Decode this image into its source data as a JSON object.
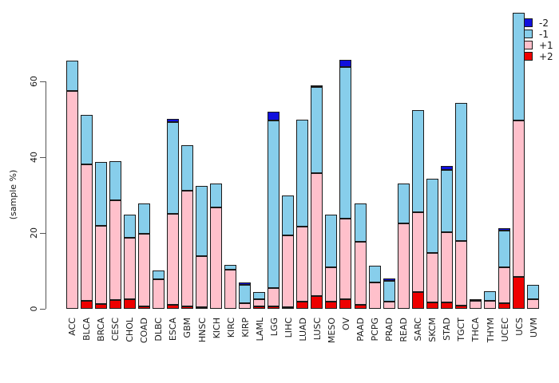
{
  "figure": {
    "ylabel": "(sample %)",
    "legend": {
      "items": [
        {
          "label": "-2",
          "color": "#1010dd"
        },
        {
          "label": "-1",
          "color": "#87ceeb"
        },
        {
          "label": "+1",
          "color": "#ffc0cb"
        },
        {
          "label": "+2",
          "color": "#ee0000"
        }
      ]
    }
  },
  "chart_data": {
    "type": "bar",
    "stacked": true,
    "title": "",
    "xlabel": "",
    "ylabel": "(sample %)",
    "ylim": [
      0,
      80
    ],
    "yticks": [
      0,
      20,
      40,
      60
    ],
    "grid": false,
    "legend_position": "top-right",
    "bar_order_bottom_to_top": [
      "+2",
      "+1",
      "-1",
      "-2"
    ],
    "categories": [
      "ACC",
      "BLCA",
      "BRCA",
      "CESC",
      "CHOL",
      "COAD",
      "DLBC",
      "ESCA",
      "GBM",
      "HNSC",
      "KICH",
      "KIRC",
      "KIRP",
      "LAML",
      "LGG",
      "LIHC",
      "LUAD",
      "LUSC",
      "MESO",
      "OV",
      "PAAD",
      "PCPG",
      "PRAD",
      "READ",
      "SARC",
      "SKCM",
      "STAD",
      "TGCT",
      "THCA",
      "THYM",
      "UCEC",
      "UCS",
      "UVM"
    ],
    "series": [
      {
        "name": "+2",
        "color": "#ee0000",
        "values": [
          0,
          2.1,
          1.3,
          2.3,
          2.6,
          0.6,
          0,
          1.1,
          0.6,
          0.5,
          0,
          0,
          0,
          0.7,
          0.7,
          0.3,
          1.9,
          3.4,
          2.0,
          2.5,
          1.1,
          0,
          0,
          0,
          4.4,
          1.6,
          1.6,
          0.9,
          0,
          0,
          1.4,
          8.4,
          0
        ]
      },
      {
        "name": "+1",
        "color": "#ffc0cb",
        "values": [
          57.4,
          36.0,
          20.6,
          26.4,
          16.2,
          19.1,
          7.8,
          24.0,
          30.6,
          13.4,
          26.8,
          10.4,
          1.4,
          1.9,
          4.7,
          19.0,
          19.7,
          32.5,
          9.0,
          21.4,
          16.6,
          7.0,
          1.8,
          22.6,
          21.0,
          13.1,
          18.6,
          17.0,
          2.1,
          2.1,
          9.5,
          41.2,
          2.5
        ]
      },
      {
        "name": "-1",
        "color": "#87ceeb",
        "values": [
          8.0,
          13.0,
          16.8,
          10.3,
          6.0,
          8.2,
          2.3,
          24.2,
          12.0,
          18.6,
          6.2,
          1.2,
          4.9,
          1.8,
          44.3,
          10.5,
          28.4,
          22.7,
          13.8,
          40.0,
          10.0,
          4.4,
          5.6,
          10.4,
          27.0,
          19.7,
          16.4,
          36.5,
          0.4,
          2.5,
          9.8,
          28.6,
          3.8
        ]
      },
      {
        "name": "-2",
        "color": "#1010dd",
        "values": [
          0,
          0,
          0,
          0,
          0,
          0,
          0,
          0.9,
          0,
          0,
          0,
          0,
          0.7,
          0,
          2.4,
          0,
          0,
          0.4,
          0,
          1.7,
          0,
          0,
          0.7,
          0,
          0,
          0,
          1.0,
          0,
          0,
          0,
          0.5,
          0,
          0
        ]
      }
    ]
  }
}
